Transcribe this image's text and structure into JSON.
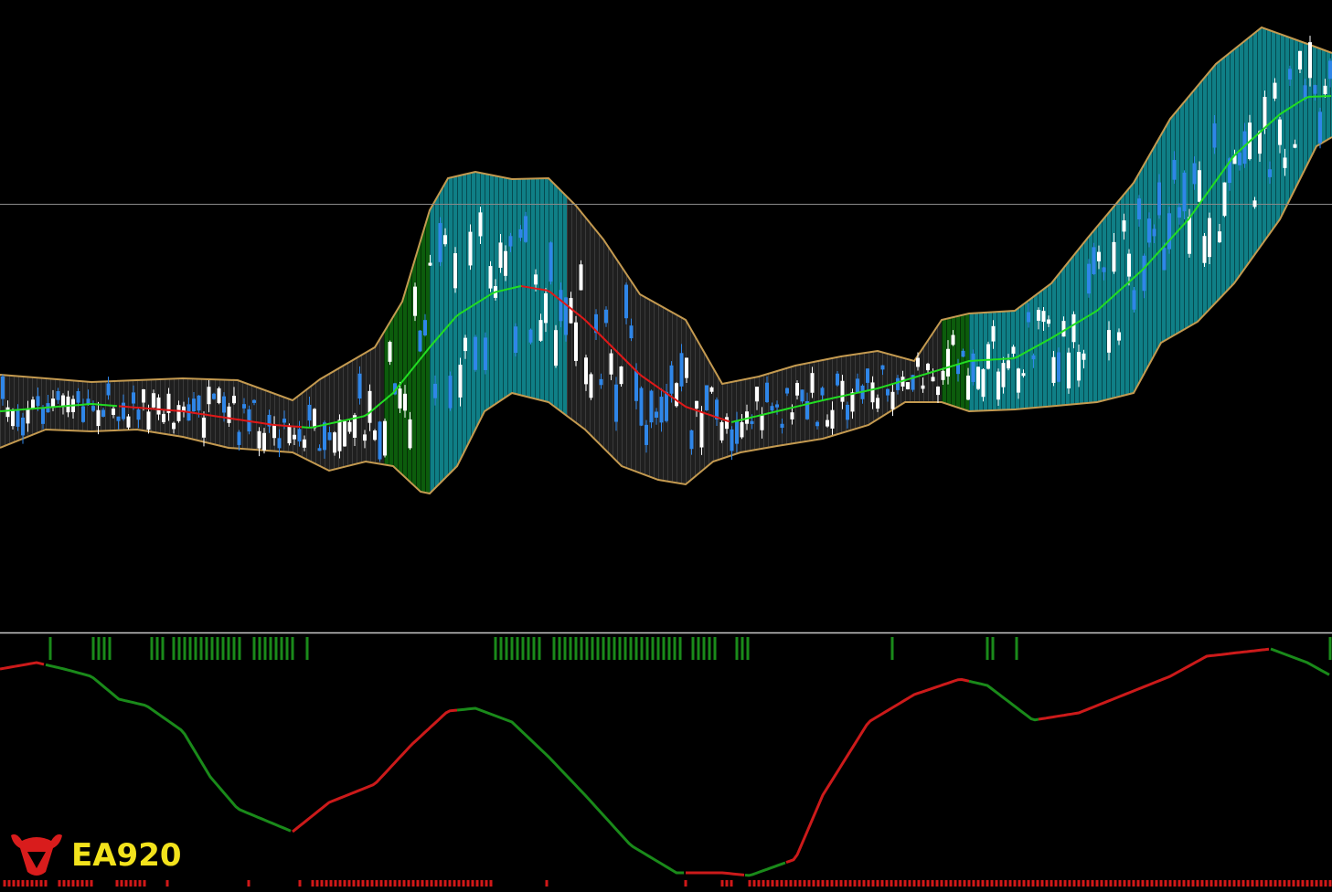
{
  "logo": {
    "text": "EA920"
  }
}
